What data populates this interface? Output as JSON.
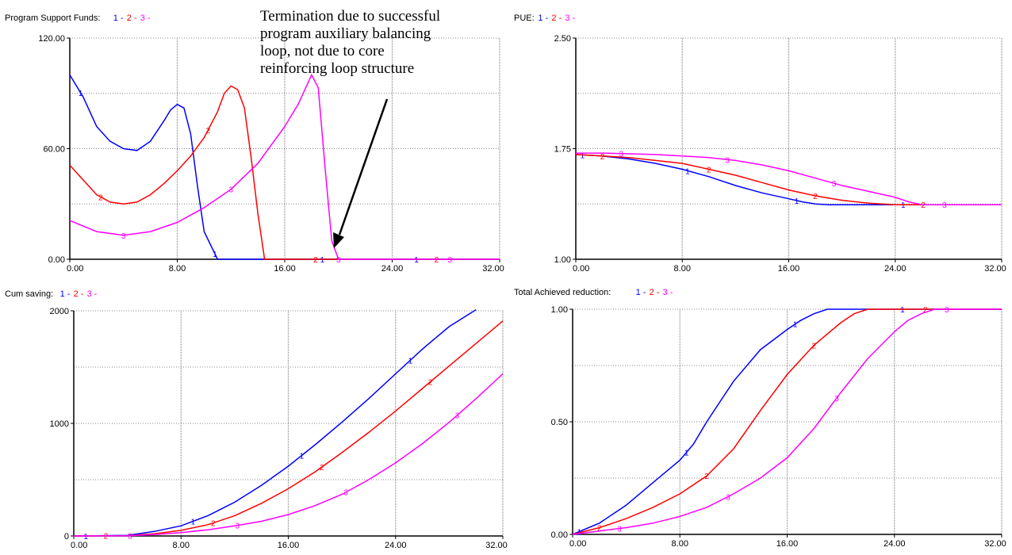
{
  "annotation": {
    "lines": [
      "Termination due to successful",
      "program auxiliary balancing",
      "loop, not due to core",
      "reinforcing loop structure"
    ]
  },
  "colors": {
    "1": "#0000ff",
    "2": "#ff0000",
    "3": "#ff00ff",
    "grid": "#888888",
    "frame": "#000000"
  },
  "chart_data": [
    {
      "type": "line",
      "title": "Program Support  Funds:",
      "legend": [
        "1",
        "2",
        "3"
      ],
      "xlim": [
        0,
        32
      ],
      "ylim": [
        0,
        120
      ],
      "xticks": [
        0,
        8,
        16,
        24,
        32
      ],
      "xtick_labels": [
        "0.00",
        "8.00",
        "16.00",
        "24.00",
        "32.00"
      ],
      "yticks": [
        0,
        60,
        120
      ],
      "ytick_labels": [
        "0.00",
        "60.00",
        "120.00"
      ],
      "grid": {
        "x": [
          8,
          16,
          24,
          32
        ],
        "y": [
          30,
          60,
          90,
          120
        ]
      },
      "series": [
        {
          "name": "1",
          "x": [
            0,
            1,
            2,
            3,
            4,
            5,
            6,
            7,
            7.5,
            8,
            8.5,
            9,
            9.5,
            10,
            11,
            14,
            18,
            24,
            32
          ],
          "values": [
            100,
            88,
            72,
            64,
            60,
            59,
            64,
            75,
            81,
            84,
            82,
            68,
            40,
            15,
            0,
            0,
            0,
            0,
            0
          ]
        },
        {
          "name": "2",
          "x": [
            0,
            1,
            2,
            3,
            4,
            5,
            6,
            7,
            8,
            9,
            10,
            11,
            11.5,
            12,
            12.5,
            13,
            13.5,
            14,
            14.5,
            16,
            24,
            32
          ],
          "values": [
            51,
            43,
            35,
            31,
            30,
            31,
            35,
            41,
            48,
            56,
            66,
            80,
            90,
            94,
            92,
            82,
            55,
            25,
            0,
            0,
            0,
            0
          ]
        },
        {
          "name": "3",
          "x": [
            0,
            2,
            4,
            6,
            8,
            10,
            12,
            14,
            15,
            16,
            17,
            18,
            18.5,
            19,
            19.5,
            20,
            24,
            32
          ],
          "values": [
            21,
            15,
            13,
            15,
            20,
            28,
            38,
            52,
            62,
            72,
            84,
            100,
            93,
            50,
            10,
            0,
            0,
            0
          ]
        }
      ],
      "label_x": {
        "1": [
          0.8,
          10.8,
          18.8,
          25.8
        ],
        "2": [
          2.3,
          10.3,
          18.3,
          27.3
        ],
        "3": [
          4,
          12,
          20,
          28.3
        ]
      }
    },
    {
      "type": "line",
      "title": "PUE:",
      "legend": [
        "1",
        "2",
        "3"
      ],
      "xlim": [
        0,
        32
      ],
      "ylim": [
        1,
        2.5
      ],
      "xticks": [
        0,
        8,
        16,
        24,
        32
      ],
      "xtick_labels": [
        "0.00",
        "8.00",
        "16.00",
        "24.00",
        "32.00"
      ],
      "yticks": [
        1,
        1.75,
        2.5
      ],
      "ytick_labels": [
        "1.00",
        "1.75",
        "2.50"
      ],
      "grid": {
        "x": [
          8,
          16,
          24,
          32
        ],
        "y": [
          1.375,
          1.75,
          2.125,
          2.5
        ]
      },
      "series": [
        {
          "name": "1",
          "x": [
            0,
            2,
            4,
            6,
            8,
            10,
            12,
            14,
            16,
            17,
            18,
            19,
            20,
            21,
            22,
            32
          ],
          "values": [
            1.71,
            1.7,
            1.68,
            1.65,
            1.61,
            1.56,
            1.5,
            1.45,
            1.41,
            1.39,
            1.375,
            1.37,
            1.37,
            1.37,
            1.37,
            1.37
          ]
        },
        {
          "name": "2",
          "x": [
            0,
            2,
            4,
            6,
            8,
            10,
            12,
            14,
            16,
            18,
            20,
            22,
            24,
            26,
            32
          ],
          "values": [
            1.71,
            1.7,
            1.69,
            1.67,
            1.65,
            1.61,
            1.57,
            1.52,
            1.47,
            1.43,
            1.4,
            1.38,
            1.37,
            1.37,
            1.37
          ]
        },
        {
          "name": "3",
          "x": [
            0,
            2,
            4,
            6,
            8,
            10,
            12,
            14,
            16,
            18,
            20,
            22,
            24,
            25,
            26,
            32
          ],
          "values": [
            1.72,
            1.72,
            1.715,
            1.71,
            1.7,
            1.69,
            1.67,
            1.64,
            1.6,
            1.55,
            1.5,
            1.46,
            1.42,
            1.39,
            1.37,
            1.37
          ]
        }
      ],
      "label_x": {
        "1": [
          0.5,
          8.4,
          16.6,
          24.6
        ],
        "2": [
          2,
          10,
          18,
          26.1
        ],
        "3": [
          3.4,
          11.4,
          19.4,
          27.7
        ]
      }
    },
    {
      "type": "line",
      "title": "Cum saving:",
      "legend": [
        "1",
        "2",
        "3"
      ],
      "xlim": [
        0,
        32
      ],
      "ylim": [
        0,
        2000
      ],
      "xticks": [
        0,
        8,
        16,
        24,
        32
      ],
      "xtick_labels": [
        "0.00",
        "8.00",
        "16.00",
        "24.00",
        "32.00"
      ],
      "yticks": [
        0,
        1000,
        2000
      ],
      "ytick_labels": [
        "0",
        "1000",
        "2000"
      ],
      "grid": {
        "x": [
          8,
          16,
          24,
          32
        ],
        "y": [
          500,
          1000,
          1500,
          2000
        ]
      },
      "series": [
        {
          "name": "1",
          "x": [
            0,
            4,
            6,
            8,
            10,
            12,
            14,
            16,
            18,
            20,
            22,
            24,
            26,
            28,
            30
          ],
          "values": [
            0,
            5,
            40,
            90,
            180,
            300,
            450,
            620,
            810,
            1010,
            1220,
            1440,
            1660,
            1860,
            2010
          ]
        },
        {
          "name": "2",
          "x": [
            0,
            4,
            6,
            8,
            10,
            12,
            14,
            16,
            18,
            20,
            22,
            24,
            26,
            28,
            30,
            32
          ],
          "values": [
            0,
            3,
            20,
            50,
            100,
            180,
            290,
            420,
            570,
            740,
            920,
            1110,
            1310,
            1510,
            1710,
            1910
          ]
        },
        {
          "name": "3",
          "x": [
            0,
            4,
            6,
            8,
            10,
            12,
            14,
            16,
            18,
            20,
            22,
            24,
            26,
            28,
            30,
            32
          ],
          "values": [
            0,
            2,
            12,
            30,
            55,
            90,
            130,
            190,
            270,
            370,
            500,
            650,
            820,
            1010,
            1220,
            1440
          ]
        }
      ],
      "label_x": {
        "1": [
          0.9,
          8.9,
          17,
          25.1
        ],
        "2": [
          2.4,
          10.4,
          18.5,
          26.6
        ],
        "3": [
          4.2,
          12.2,
          20.3,
          28.6
        ]
      }
    },
    {
      "type": "line",
      "title": "Total Achieved  reduction:",
      "legend": [
        "1",
        "2",
        "3"
      ],
      "xlim": [
        0,
        32
      ],
      "ylim": [
        0,
        1
      ],
      "xticks": [
        0,
        8,
        16,
        24,
        32
      ],
      "xtick_labels": [
        "0.00",
        "8.00",
        "16.00",
        "24.00",
        "32.00"
      ],
      "yticks": [
        0,
        0.5,
        1
      ],
      "ytick_labels": [
        "0.00",
        "0.50",
        "1.00"
      ],
      "grid": {
        "x": [
          8,
          16,
          24,
          32
        ],
        "y": [
          0.25,
          0.5,
          0.75,
          1
        ]
      },
      "series": [
        {
          "name": "1",
          "x": [
            0,
            2,
            4,
            6,
            8,
            9,
            10,
            12,
            14,
            16,
            17,
            18,
            19,
            20,
            32
          ],
          "values": [
            0,
            0.05,
            0.13,
            0.23,
            0.33,
            0.4,
            0.5,
            0.68,
            0.82,
            0.91,
            0.95,
            0.98,
            1,
            1,
            1
          ]
        },
        {
          "name": "2",
          "x": [
            0,
            2,
            4,
            6,
            8,
            10,
            12,
            14,
            16,
            18,
            20,
            21,
            22,
            32
          ],
          "values": [
            0,
            0.03,
            0.07,
            0.12,
            0.18,
            0.26,
            0.38,
            0.55,
            0.71,
            0.84,
            0.94,
            0.98,
            1,
            1
          ]
        },
        {
          "name": "3",
          "x": [
            0,
            2,
            4,
            6,
            8,
            10,
            12,
            14,
            16,
            18,
            20,
            22,
            24,
            25,
            26,
            27,
            32
          ],
          "values": [
            0,
            0.015,
            0.03,
            0.05,
            0.08,
            0.12,
            0.18,
            0.25,
            0.34,
            0.47,
            0.63,
            0.78,
            0.9,
            0.95,
            0.98,
            1,
            1
          ]
        }
      ],
      "label_x": {
        "1": [
          0.5,
          8.5,
          16.6,
          24.6
        ],
        "2": [
          2,
          10,
          18,
          26.3
        ],
        "3": [
          3.5,
          11.6,
          19.7,
          27.9
        ]
      }
    }
  ]
}
